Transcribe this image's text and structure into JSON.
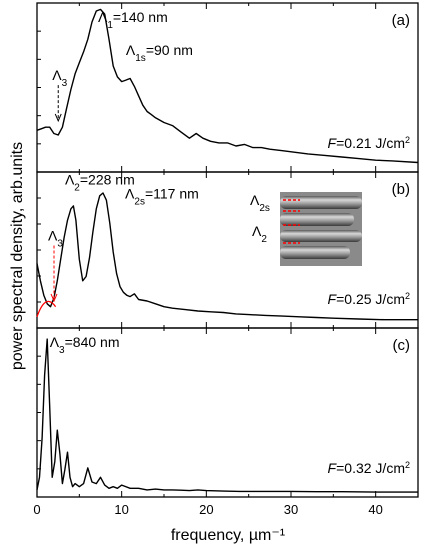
{
  "chart_data": {
    "type": "line",
    "xlabel": "frequency, µm⁻¹",
    "ylabel": "power spectral density, arb.units",
    "xlim": [
      0,
      45
    ],
    "xticks": [
      "0",
      "10",
      "20",
      "30",
      "40"
    ],
    "colors": {
      "line": "#000000",
      "annotation": "#ff0000"
    },
    "panels": [
      {
        "panel_label": "(a)",
        "fluence": "F=0.21 J/cm²",
        "ylim": [
          0,
          1
        ],
        "annotations": [
          {
            "text": "Λ1=140 nm",
            "x": 7.2,
            "y": 0.93
          },
          {
            "text": "Λ1s=90 nm",
            "x": 10.5,
            "y": 0.72
          },
          {
            "text": "Λ3",
            "x": 1.8,
            "y": 0.56,
            "arrow": "dashed-down",
            "arrow_to_y": 0.3
          }
        ],
        "x": [
          0,
          0.5,
          1.0,
          1.5,
          2.0,
          2.5,
          3.0,
          3.5,
          4.0,
          4.5,
          5.0,
          5.5,
          6.0,
          6.5,
          7.0,
          7.5,
          8.0,
          8.5,
          9.0,
          9.5,
          10.0,
          10.5,
          11.0,
          11.5,
          12.0,
          12.5,
          13.0,
          13.5,
          14.0,
          15.0,
          16.0,
          17.0,
          18.0,
          18.8,
          19.6,
          20.5,
          21.5,
          22.5,
          23.5,
          24.5,
          25.5,
          26.5,
          27.5,
          29.0,
          30.5,
          32.0,
          34.0,
          36.0,
          38.0,
          40.0,
          42.0,
          45.0
        ],
        "y": [
          0.24,
          0.25,
          0.26,
          0.26,
          0.22,
          0.21,
          0.26,
          0.38,
          0.5,
          0.6,
          0.67,
          0.74,
          0.82,
          0.93,
          1.0,
          1.01,
          0.98,
          0.82,
          0.65,
          0.58,
          0.55,
          0.56,
          0.57,
          0.52,
          0.46,
          0.4,
          0.36,
          0.34,
          0.32,
          0.29,
          0.27,
          0.23,
          0.19,
          0.22,
          0.19,
          0.17,
          0.16,
          0.16,
          0.14,
          0.15,
          0.13,
          0.13,
          0.12,
          0.11,
          0.1,
          0.09,
          0.08,
          0.07,
          0.06,
          0.05,
          0.045,
          0.035
        ]
      },
      {
        "panel_label": "(b)",
        "fluence": "F=0.25 J/cm²",
        "ylim": [
          0,
          1
        ],
        "annotations": [
          {
            "text": "Λ2=228 nm",
            "x": 3.3,
            "y": 0.97
          },
          {
            "text": "Λ2s=117 nm",
            "x": 10.4,
            "y": 0.87
          },
          {
            "text": "Λ3",
            "x": 1.3,
            "y": 0.58,
            "arrow": "dashed-down-red",
            "arrow_to_y": 0.16
          }
        ],
        "inset_labels": [
          "Λ2s",
          "Λ2"
        ],
        "x": [
          0,
          0.4,
          0.8,
          1.2,
          1.6,
          2.0,
          2.4,
          2.8,
          3.2,
          3.6,
          4.0,
          4.3,
          4.6,
          5.0,
          5.4,
          5.8,
          6.2,
          6.6,
          7.0,
          7.4,
          7.8,
          8.2,
          8.6,
          9.0,
          9.4,
          9.8,
          10.2,
          10.6,
          11.0,
          11.5,
          12.0,
          13.0,
          14.0,
          15.0,
          16.0,
          17.5,
          19.0,
          20.5,
          22.0,
          23.5,
          25.0,
          27.0,
          29.0,
          31.0,
          33.0,
          35.0,
          38.0,
          41.0,
          45.0
        ],
        "y": [
          0.42,
          0.3,
          0.2,
          0.14,
          0.12,
          0.18,
          0.3,
          0.45,
          0.6,
          0.72,
          0.8,
          0.82,
          0.72,
          0.45,
          0.3,
          0.33,
          0.46,
          0.64,
          0.8,
          0.89,
          0.91,
          0.86,
          0.7,
          0.5,
          0.35,
          0.26,
          0.22,
          0.2,
          0.19,
          0.21,
          0.17,
          0.16,
          0.14,
          0.12,
          0.11,
          0.1,
          0.09,
          0.085,
          0.08,
          0.07,
          0.065,
          0.06,
          0.055,
          0.05,
          0.045,
          0.04,
          0.035,
          0.03,
          0.03
        ]
      },
      {
        "panel_label": "(c)",
        "fluence": "F=0.32 J/cm²",
        "ylim": [
          0,
          1
        ],
        "annotations": [
          {
            "text": "Λ3=840 nm",
            "x": 1.5,
            "y": 0.93
          }
        ],
        "x": [
          0,
          0.3,
          0.6,
          0.9,
          1.2,
          1.5,
          1.8,
          2.1,
          2.4,
          2.7,
          3.0,
          3.3,
          3.6,
          3.9,
          4.2,
          4.5,
          5.0,
          5.5,
          6.0,
          6.5,
          7.0,
          7.5,
          8.0,
          8.5,
          9.0,
          9.5,
          10.0,
          11.0,
          12.0,
          13.0,
          14.0,
          15.0,
          16.0,
          17.0,
          18.0,
          19.0,
          20.0,
          22.0,
          24.0,
          26.0,
          28.0,
          30.0,
          33.0,
          36.0,
          40.0,
          45.0
        ],
        "y": [
          0.02,
          0.1,
          0.35,
          0.75,
          0.98,
          0.55,
          0.1,
          0.2,
          0.4,
          0.25,
          0.06,
          0.15,
          0.26,
          0.1,
          0.04,
          0.06,
          0.04,
          0.06,
          0.16,
          0.07,
          0.06,
          0.1,
          0.05,
          0.03,
          0.04,
          0.03,
          0.05,
          0.03,
          0.03,
          0.02,
          0.025,
          0.02,
          0.02,
          0.018,
          0.015,
          0.02,
          0.015,
          0.012,
          0.01,
          0.01,
          0.01,
          0.01,
          0.008,
          0.008,
          0.006,
          0.006
        ]
      }
    ]
  }
}
